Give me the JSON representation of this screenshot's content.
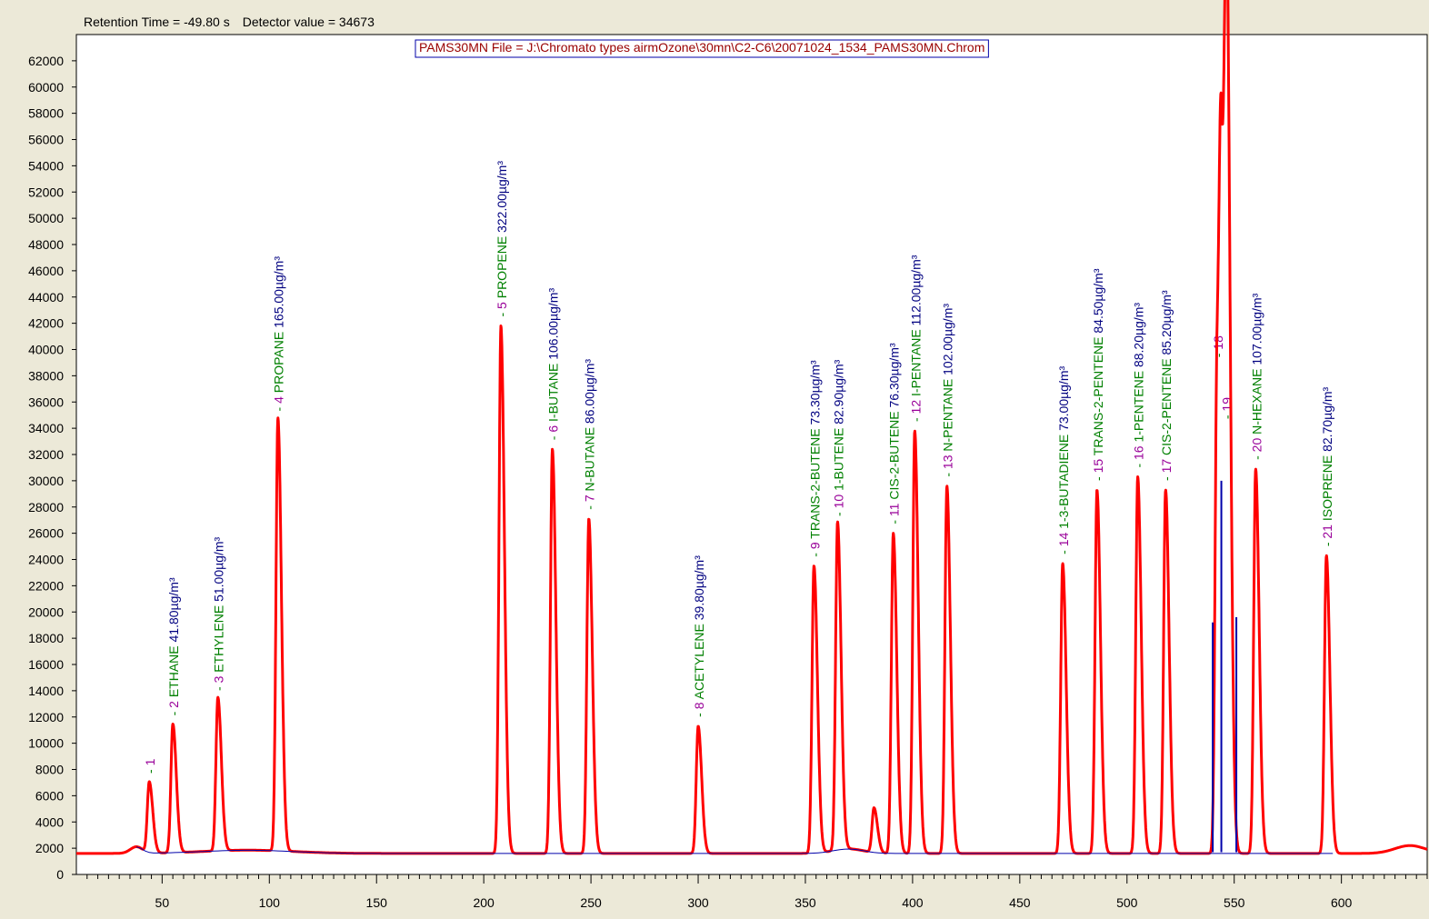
{
  "status": {
    "retention_label": "Retention Time = -49.80 s",
    "detector_label": "Detector value = 34673"
  },
  "colors": {
    "signal": "#ff0000",
    "baseline": "#0000aa",
    "peak_number": "#990099",
    "compound_name": "#008000",
    "concentration": "#000080",
    "title": "#990000",
    "axis": "#000000",
    "background": "#ffffff",
    "window": "#ece9d8"
  },
  "chart_data": {
    "type": "line",
    "title": "PAMS30MN File = J:\\Chromato types airmOzone\\30mn\\C2-C6\\20071024_1534_PAMS30MN.Chrom",
    "xlabel": "",
    "ylabel": "",
    "xlim": [
      10,
      640
    ],
    "ylim": [
      0,
      64000
    ],
    "x_ticks": [
      50,
      100,
      150,
      200,
      250,
      300,
      350,
      400,
      450,
      500,
      550,
      600
    ],
    "y_ticks": [
      0,
      2000,
      4000,
      6000,
      8000,
      10000,
      12000,
      14000,
      16000,
      18000,
      20000,
      22000,
      24000,
      26000,
      28000,
      30000,
      32000,
      34000,
      36000,
      38000,
      40000,
      42000,
      44000,
      46000,
      48000,
      50000,
      52000,
      54000,
      56000,
      58000,
      60000,
      62000
    ],
    "grid": false,
    "legend": "none",
    "baseline_level": 1600,
    "unlabeled_peaks": [
      {
        "rt": 382,
        "height": 5000
      },
      {
        "rt": 544,
        "height": 38800
      },
      {
        "rt": 547,
        "height": 34500
      }
    ],
    "peaks": [
      {
        "num": "1",
        "name": "",
        "conc": "",
        "rt": 44,
        "height": 7000
      },
      {
        "num": "2",
        "name": "ETHANE",
        "conc": "41.80µg/m³",
        "rt": 55,
        "height": 11400
      },
      {
        "num": "3",
        "name": "ETHYLENE",
        "conc": "51.00µg/m³",
        "rt": 76,
        "height": 13300
      },
      {
        "num": "4",
        "name": "PROPANE",
        "conc": "165.00µg/m³",
        "rt": 104,
        "height": 34600
      },
      {
        "num": "5",
        "name": "PROPENE",
        "conc": "322.00µg/m³",
        "rt": 208,
        "height": 41800
      },
      {
        "num": "6",
        "name": "I-BUTANE",
        "conc": "106.00µg/m³",
        "rt": 232,
        "height": 32400
      },
      {
        "num": "7",
        "name": "N-BUTANE",
        "conc": "86.00µg/m³",
        "rt": 249,
        "height": 27100
      },
      {
        "num": "8",
        "name": "ACETYLENE",
        "conc": "39.80µg/m³",
        "rt": 300,
        "height": 11300
      },
      {
        "num": "9",
        "name": "TRANS-2-BUTENE",
        "conc": "73.30µg/m³",
        "rt": 354,
        "height": 23500
      },
      {
        "num": "10",
        "name": "1-BUTENE",
        "conc": "82.90µg/m³",
        "rt": 365,
        "height": 26600
      },
      {
        "num": "11",
        "name": "CIS-2-BUTENE",
        "conc": "76.30µg/m³",
        "rt": 391,
        "height": 26000
      },
      {
        "num": "12",
        "name": "I-PENTANE",
        "conc": "112.00µg/m³",
        "rt": 401,
        "height": 33800
      },
      {
        "num": "13",
        "name": "N-PENTANE",
        "conc": "102.00µg/m³",
        "rt": 416,
        "height": 29600
      },
      {
        "num": "14",
        "name": "1-3-BUTADIENE",
        "conc": "73.00µg/m³",
        "rt": 470,
        "height": 23700
      },
      {
        "num": "15",
        "name": "TRANS-2-PENTENE",
        "conc": "84.50µg/m³",
        "rt": 486,
        "height": 29300
      },
      {
        "num": "16",
        "name": "1-PENTENE",
        "conc": "88.20µg/m³",
        "rt": 505,
        "height": 30300
      },
      {
        "num": "17",
        "name": "CIS-2-PENTENE",
        "conc": "85.20µg/m³",
        "rt": 518,
        "height": 29300
      },
      {
        "num": "18",
        "name": "",
        "conc": "",
        "rt": 542,
        "height": 38700
      },
      {
        "num": "19",
        "name": "",
        "conc": "",
        "rt": 546,
        "height": 34000
      },
      {
        "num": "20",
        "name": "N-HEXANE",
        "conc": "107.00µg/m³",
        "rt": 560,
        "height": 30900
      },
      {
        "num": "21",
        "name": "ISOPRENE",
        "conc": "82.70µg/m³",
        "rt": 593,
        "height": 24300
      }
    ]
  }
}
